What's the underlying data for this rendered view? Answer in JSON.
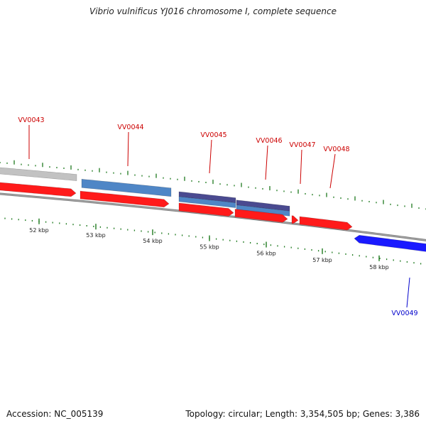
{
  "title": "Vibrio vulnificus YJ016 chromosome I, complete sequence",
  "footer": {
    "accession": "Accession: NC_005139",
    "topology": "Topology: circular; Length: 3,354,505 bp; Genes: 3,386"
  },
  "colors": {
    "backbone": "#7a7a7a",
    "forward_gene": "#ff1a1a",
    "reverse_gene": "#1a1aff",
    "tick": "#1e7a1e",
    "label_forward": "#cc0000",
    "label_reverse": "#0000cc",
    "feature_gray": "#c2c2c2",
    "feature_steel_blue": "#4f86c6",
    "feature_slate": "#4a4a90"
  },
  "scale_labels": [
    "52 kbp",
    "53 kbp",
    "54 kbp",
    "55 kbp",
    "56 kbp",
    "57 kbp",
    "58 kbp"
  ],
  "genes": [
    {
      "name": "VV0043",
      "strand": "forward"
    },
    {
      "name": "VV0044",
      "strand": "forward"
    },
    {
      "name": "VV0045",
      "strand": "forward"
    },
    {
      "name": "VV0046",
      "strand": "forward"
    },
    {
      "name": "VV0047",
      "strand": "forward"
    },
    {
      "name": "VV0048",
      "strand": "forward"
    },
    {
      "name": "VV0049",
      "strand": "reverse"
    }
  ]
}
